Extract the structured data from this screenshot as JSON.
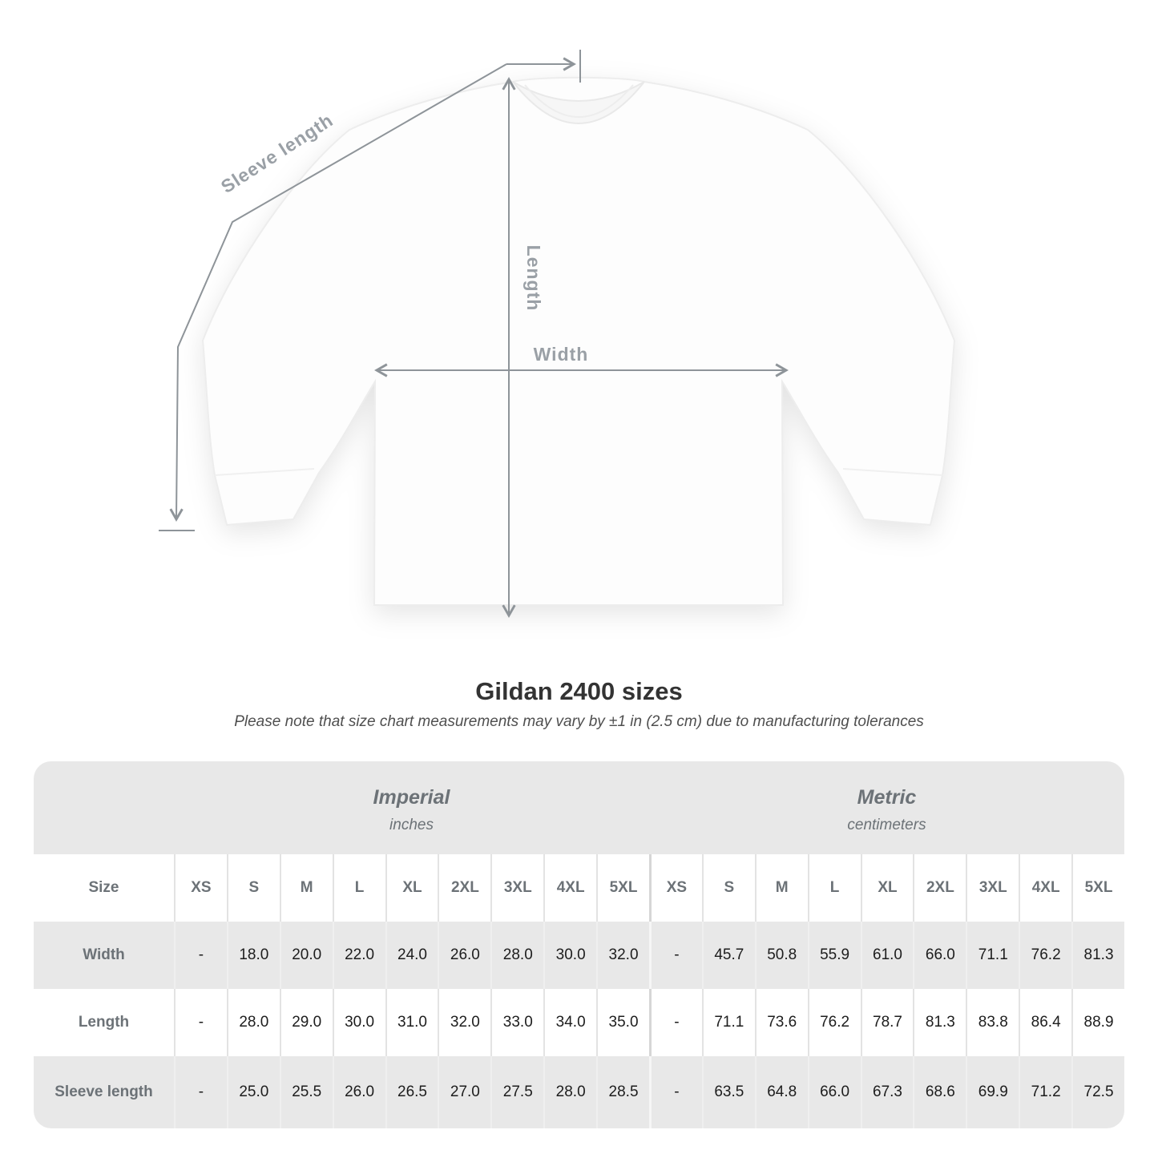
{
  "diagram": {
    "sleeve_length_label": "Sleeve length",
    "length_label": "Length",
    "width_label": "Width"
  },
  "header": {
    "title": "Gildan 2400 sizes",
    "note": "Please note that size chart measurements may vary by ±1 in (2.5 cm) due to manufacturing tolerances"
  },
  "table": {
    "size_header": "Size",
    "groups": [
      {
        "label": "Imperial",
        "unit": "inches"
      },
      {
        "label": "Metric",
        "unit": "centimeters"
      }
    ],
    "sizes": [
      "XS",
      "S",
      "M",
      "L",
      "XL",
      "2XL",
      "3XL",
      "4XL",
      "5XL"
    ],
    "rows": [
      {
        "label": "Width",
        "imperial": [
          "-",
          "18.0",
          "20.0",
          "22.0",
          "24.0",
          "26.0",
          "28.0",
          "30.0",
          "32.0"
        ],
        "metric": [
          "-",
          "45.7",
          "50.8",
          "55.9",
          "61.0",
          "66.0",
          "71.1",
          "76.2",
          "81.3"
        ]
      },
      {
        "label": "Length",
        "imperial": [
          "-",
          "28.0",
          "29.0",
          "30.0",
          "31.0",
          "32.0",
          "33.0",
          "34.0",
          "35.0"
        ],
        "metric": [
          "-",
          "71.1",
          "73.6",
          "76.2",
          "78.7",
          "81.3",
          "83.8",
          "86.4",
          "88.9"
        ]
      },
      {
        "label": "Sleeve length",
        "imperial": [
          "-",
          "25.0",
          "25.5",
          "26.0",
          "26.5",
          "27.0",
          "27.5",
          "28.0",
          "28.5"
        ],
        "metric": [
          "-",
          "63.5",
          "64.8",
          "66.0",
          "67.3",
          "68.6",
          "69.9",
          "71.2",
          "72.5"
        ]
      }
    ]
  },
  "colors": {
    "table_bg": "#e8e8e8",
    "header_text": "#6c7277",
    "value_text": "#1d1d1d",
    "diagram_line": "#8e9499",
    "diagram_label": "#9aa0a6",
    "title_text": "#333333",
    "note_text": "#4f4f4f"
  }
}
